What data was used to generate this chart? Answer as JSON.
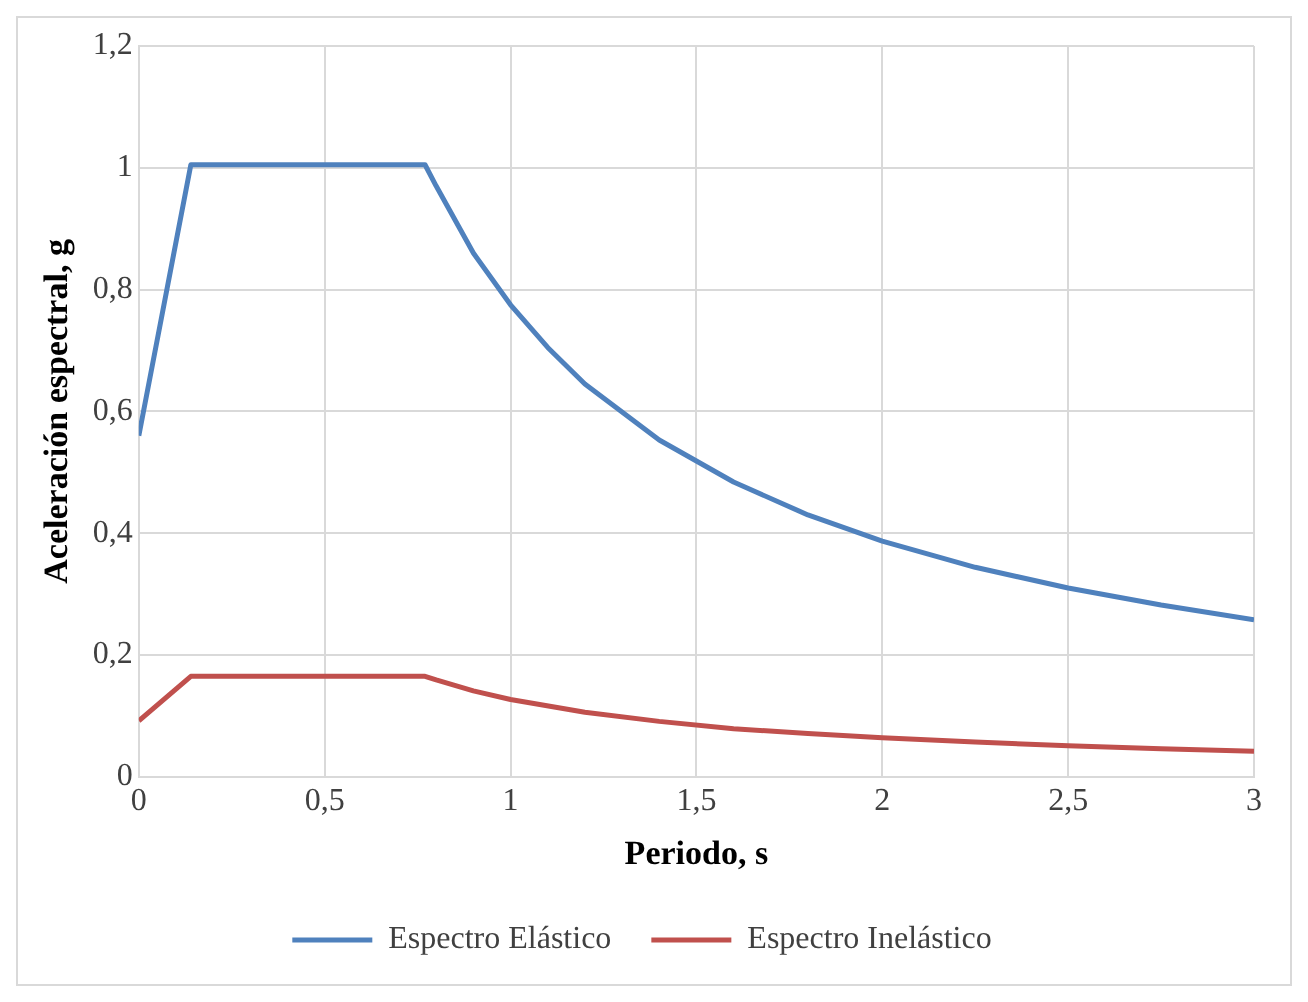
{
  "chart_data": {
    "type": "line",
    "xlabel": "Periodo, s",
    "ylabel": "Aceleración espectral, g",
    "xlim": [
      0,
      3
    ],
    "xticks": [
      0,
      {
        "value": 0.5,
        "label": "0,5"
      },
      1,
      {
        "value": 1.5,
        "label": "1,5"
      },
      2,
      {
        "value": 2.5,
        "label": "2,5"
      },
      3
    ],
    "ylim": [
      0,
      1.2
    ],
    "yticks": [
      0,
      {
        "value": 0.2,
        "label": "0,2"
      },
      {
        "value": 0.4,
        "label": "0,4"
      },
      {
        "value": 0.6,
        "label": "0,6"
      },
      {
        "value": 0.8,
        "label": "0,8"
      },
      1,
      {
        "value": 1.2,
        "label": "1,2"
      }
    ],
    "grid": true,
    "legend": "bottom",
    "marker": "none",
    "line_style": "solid",
    "series": [
      {
        "name": "Espectro Elástico",
        "color": "#4f81bd",
        "x": [
          0,
          0.14,
          0.77,
          0.8,
          0.9,
          1.0,
          1.1,
          1.2,
          1.4,
          1.6,
          1.8,
          2.0,
          2.25,
          2.5,
          2.75,
          3.0
        ],
        "values": [
          0.56,
          1.005,
          1.005,
          0.97,
          0.86,
          0.775,
          0.705,
          0.645,
          0.553,
          0.484,
          0.43,
          0.387,
          0.344,
          0.31,
          0.282,
          0.258
        ]
      },
      {
        "name": "Espectro Inelástico",
        "color": "#c0504d",
        "x": [
          0,
          0.14,
          0.77,
          0.8,
          0.9,
          1.0,
          1.2,
          1.4,
          1.6,
          1.8,
          2.0,
          2.25,
          2.5,
          2.75,
          3.0
        ],
        "values": [
          0.092,
          0.165,
          0.165,
          0.159,
          0.141,
          0.127,
          0.106,
          0.091,
          0.079,
          0.071,
          0.064,
          0.057,
          0.051,
          0.046,
          0.042
        ]
      }
    ]
  }
}
